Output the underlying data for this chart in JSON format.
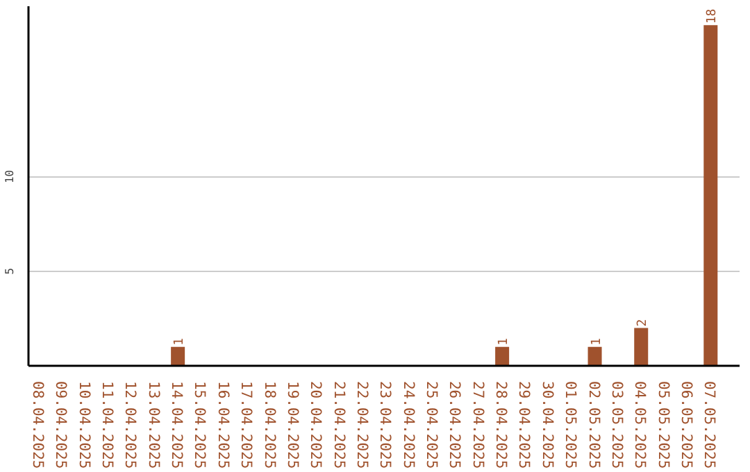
{
  "chart_data": {
    "type": "bar",
    "categories": [
      "08.04.2025",
      "09.04.2025",
      "10.04.2025",
      "11.04.2025",
      "12.04.2025",
      "13.04.2025",
      "14.04.2025",
      "15.04.2025",
      "16.04.2025",
      "17.04.2025",
      "18.04.2025",
      "19.04.2025",
      "20.04.2025",
      "21.04.2025",
      "22.04.2025",
      "23.04.2025",
      "24.04.2025",
      "25.04.2025",
      "26.04.2025",
      "27.04.2025",
      "28.04.2025",
      "29.04.2025",
      "30.04.2025",
      "01.05.2025",
      "02.05.2025",
      "03.05.2025",
      "04.05.2025",
      "05.05.2025",
      "06.05.2025",
      "07.05.2025"
    ],
    "values": [
      0,
      0,
      0,
      0,
      0,
      0,
      1,
      0,
      0,
      0,
      0,
      0,
      0,
      0,
      0,
      0,
      0,
      0,
      0,
      0,
      1,
      0,
      0,
      0,
      1,
      0,
      2,
      0,
      0,
      18
    ],
    "value_labels": [
      null,
      null,
      null,
      null,
      null,
      null,
      "1",
      null,
      null,
      null,
      null,
      null,
      null,
      null,
      null,
      null,
      null,
      null,
      null,
      null,
      "1",
      null,
      null,
      null,
      "1",
      null,
      "2",
      null,
      null,
      "18"
    ],
    "color": "#a0522d",
    "ylim": [
      0,
      19
    ],
    "yticks": [
      5,
      10
    ],
    "grid": "y"
  }
}
